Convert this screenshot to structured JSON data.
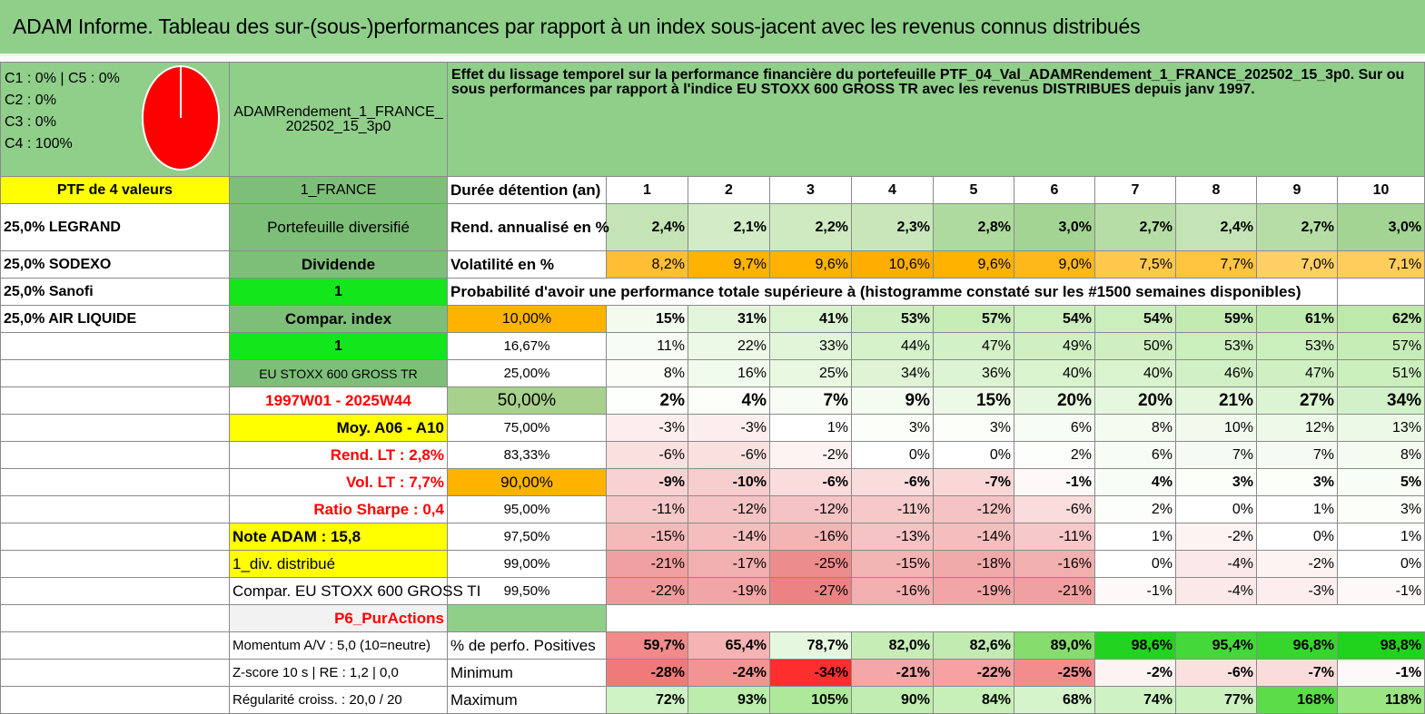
{
  "title": "ADAM Informe. Tableau des sur-(sous-)performances par rapport à un index sous-jacent avec les revenus connus distribués",
  "legend": [
    "C1 : 0% | C5 : 0%",
    "C2 : 0%",
    "C3 : 0%",
    "C4 : 100%"
  ],
  "pie": {
    "color": "#ff0000",
    "C4_percent": 100
  },
  "portfolio_name": "ADAMRendement_1_FRANCE_202502_15_3p0",
  "effect_text": "Effet du lissage temporel sur la performance financière du portefeuille PTF_04_Val_ADAMRendement_1_FRANCE_202502_15_3p0. Sur ou sous performances par rapport à l'indice EU STOXX 600 GROSS TR avec les revenus DISTRIBUES depuis janv 1997.",
  "left_col": {
    "ptf_header": "PTF de 4 valeurs",
    "holdings": [
      "25,0% LEGRAND",
      "25,0% SODEXO",
      "25,0% Sanofi",
      "25,0% AIR LIQUIDE"
    ]
  },
  "mid_col": {
    "country": "1_FRANCE",
    "diversified": "Portefeuille diversifié",
    "dividend": "Dividende",
    "one_a": "1",
    "compar_index": "Compar. index",
    "one_b": "1",
    "index_name": "EU STOXX 600 GROSS TR",
    "period": "1997W01 - 2025W44",
    "moy": "Moy. A06 - A10",
    "rend_lt": "Rend. LT : 2,8%",
    "vol_lt": "Vol. LT : 7,7%",
    "sharpe": "Ratio Sharpe : 0,4",
    "note": "Note ADAM : 15,8",
    "div": "1_div. distribué",
    "compar_full": "Compar. EU STOXX 600 GROSS TI",
    "p6": "P6_PurActions",
    "momentum": "Momentum A/V : 5,0 (10=neutre)",
    "zscore": "Z-score 10 s | RE : 1,2 | 0,0",
    "regularite": "Régularité croiss. : 20,0 / 20"
  },
  "header_row": {
    "label": "Durée détention (an)",
    "years": [
      "1",
      "2",
      "3",
      "4",
      "5",
      "6",
      "7",
      "8",
      "9",
      "10"
    ]
  },
  "rend_row": {
    "label": "Rend. annualisé en %",
    "values": [
      "2,4%",
      "2,1%",
      "2,2%",
      "2,3%",
      "2,8%",
      "3,0%",
      "2,7%",
      "2,4%",
      "2,7%",
      "3,0%"
    ]
  },
  "vol_row": {
    "label": "Volatilité en %",
    "values": [
      "8,2%",
      "9,7%",
      "9,6%",
      "10,6%",
      "9,6%",
      "9,0%",
      "7,5%",
      "7,7%",
      "7,0%",
      "7,1%"
    ]
  },
  "prob_title": "Probabilité d'avoir une performance totale supérieure à (histogramme constaté sur les #1500 semaines disponibles)",
  "prob_rows": [
    {
      "p": "10,00%",
      "values": [
        "15%",
        "31%",
        "41%",
        "53%",
        "57%",
        "54%",
        "54%",
        "59%",
        "61%",
        "62%"
      ]
    },
    {
      "p": "16,67%",
      "values": [
        "11%",
        "22%",
        "33%",
        "44%",
        "47%",
        "49%",
        "50%",
        "53%",
        "53%",
        "57%"
      ]
    },
    {
      "p": "25,00%",
      "values": [
        "8%",
        "16%",
        "25%",
        "34%",
        "36%",
        "40%",
        "40%",
        "46%",
        "47%",
        "51%"
      ]
    },
    {
      "p": "50,00%",
      "values": [
        "2%",
        "4%",
        "7%",
        "9%",
        "15%",
        "20%",
        "20%",
        "21%",
        "27%",
        "34%"
      ]
    },
    {
      "p": "75,00%",
      "values": [
        "-3%",
        "-3%",
        "1%",
        "3%",
        "3%",
        "6%",
        "8%",
        "10%",
        "12%",
        "13%"
      ]
    },
    {
      "p": "83,33%",
      "values": [
        "-6%",
        "-6%",
        "-2%",
        "0%",
        "0%",
        "2%",
        "6%",
        "7%",
        "7%",
        "8%"
      ]
    },
    {
      "p": "90,00%",
      "values": [
        "-9%",
        "-10%",
        "-6%",
        "-6%",
        "-7%",
        "-1%",
        "4%",
        "3%",
        "3%",
        "5%"
      ]
    },
    {
      "p": "95,00%",
      "values": [
        "-11%",
        "-12%",
        "-12%",
        "-11%",
        "-12%",
        "-6%",
        "2%",
        "0%",
        "1%",
        "3%"
      ]
    },
    {
      "p": "97,50%",
      "values": [
        "-15%",
        "-14%",
        "-16%",
        "-13%",
        "-14%",
        "-11%",
        "1%",
        "-2%",
        "0%",
        "1%"
      ]
    },
    {
      "p": "99,00%",
      "values": [
        "-21%",
        "-17%",
        "-25%",
        "-15%",
        "-18%",
        "-16%",
        "0%",
        "-4%",
        "-2%",
        "0%"
      ]
    },
    {
      "p": "99,50%",
      "values": [
        "-22%",
        "-19%",
        "-27%",
        "-16%",
        "-19%",
        "-21%",
        "-1%",
        "-4%",
        "-3%",
        "-1%"
      ]
    }
  ],
  "pos_row": {
    "label": "% de perfo. Positives",
    "values": [
      "59,7%",
      "65,4%",
      "78,7%",
      "82,0%",
      "82,6%",
      "89,0%",
      "98,6%",
      "95,4%",
      "96,8%",
      "98,8%"
    ]
  },
  "min_row": {
    "label": "Minimum",
    "values": [
      "-28%",
      "-24%",
      "-34%",
      "-21%",
      "-22%",
      "-25%",
      "-2%",
      "-6%",
      "-7%",
      "-1%"
    ]
  },
  "max_row": {
    "label": "Maximum",
    "values": [
      "72%",
      "93%",
      "105%",
      "90%",
      "84%",
      "68%",
      "74%",
      "77%",
      "168%",
      "118%"
    ]
  },
  "colors": {
    "title_green": "#8fcf8a",
    "yellow": "#ffff00",
    "bright_green": "#13e61a",
    "orange": "#ffb300",
    "red": "#ff0000"
  }
}
